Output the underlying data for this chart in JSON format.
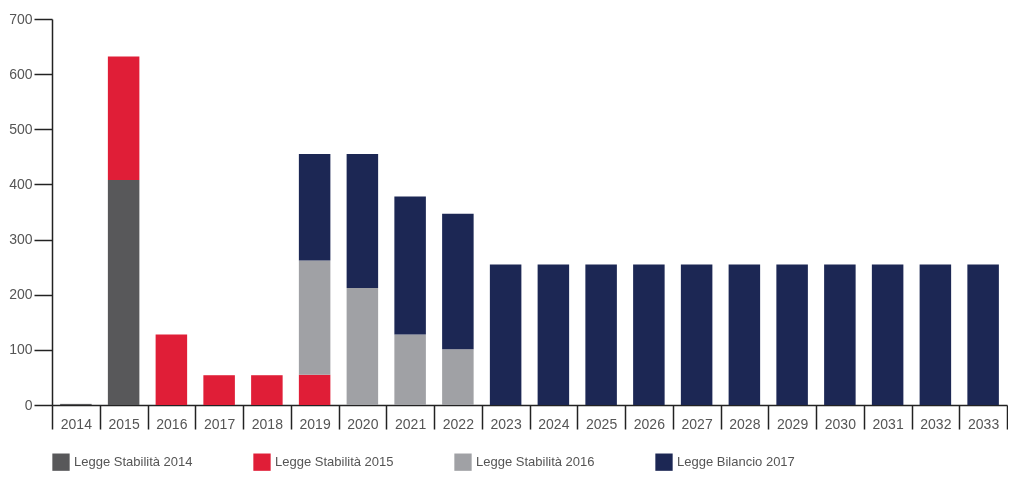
{
  "chart_data": {
    "type": "bar",
    "stacked": true,
    "categories": [
      "2014",
      "2015",
      "2016",
      "2017",
      "2018",
      "2019",
      "2020",
      "2021",
      "2022",
      "2023",
      "2024",
      "2025",
      "2026",
      "2027",
      "2028",
      "2029",
      "2030",
      "2031",
      "2032",
      "2033"
    ],
    "series": [
      {
        "name": "Legge Stabilità 2014",
        "color": "#58585a",
        "values": [
          2,
          408,
          null,
          null,
          null,
          null,
          null,
          null,
          null,
          null,
          null,
          null,
          null,
          null,
          null,
          null,
          null,
          null,
          null,
          null
        ]
      },
      {
        "name": "Legge Stabilità 2015",
        "color": "#e01e37",
        "values": [
          null,
          224,
          128,
          54,
          54,
          55,
          null,
          null,
          null,
          null,
          null,
          null,
          null,
          null,
          null,
          null,
          null,
          null,
          null,
          null
        ]
      },
      {
        "name": "Legge Stabilità 2016",
        "color": "#a0a1a5",
        "values": [
          null,
          null,
          null,
          null,
          null,
          207,
          212,
          128,
          101,
          null,
          null,
          null,
          null,
          null,
          null,
          null,
          null,
          null,
          null,
          null
        ]
      },
      {
        "name": "Legge Bilancio 2017",
        "color": "#1c2754",
        "values": [
          null,
          null,
          null,
          null,
          null,
          193,
          243,
          250,
          246,
          255,
          255,
          255,
          255,
          255,
          255,
          255,
          255,
          255,
          255,
          255
        ]
      }
    ],
    "ylim": [
      0,
      700
    ],
    "yticks": [
      0,
      100,
      200,
      300,
      400,
      500,
      600,
      700
    ],
    "grid": false,
    "legend": "bottom"
  }
}
